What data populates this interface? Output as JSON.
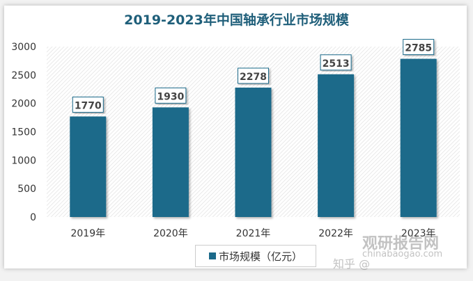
{
  "chart_data": {
    "type": "bar",
    "title": "2019-2023年中国轴承行业市场规模",
    "categories": [
      "2019年",
      "2020年",
      "2021年",
      "2022年",
      "2023年"
    ],
    "series": [
      {
        "name": "市场规模（亿元）",
        "values": [
          1770,
          1930,
          2278,
          2513,
          2785
        ]
      }
    ],
    "yticks": [
      "0",
      "500",
      "1000",
      "1500",
      "2000",
      "2500",
      "3000"
    ],
    "ylim": [
      0,
      3000
    ],
    "legend": "bottom",
    "color": "#1c6a8a"
  },
  "watermark": {
    "brand": "观研报告网",
    "url": "chinabaogao.com",
    "zhihu": "知乎 @"
  }
}
